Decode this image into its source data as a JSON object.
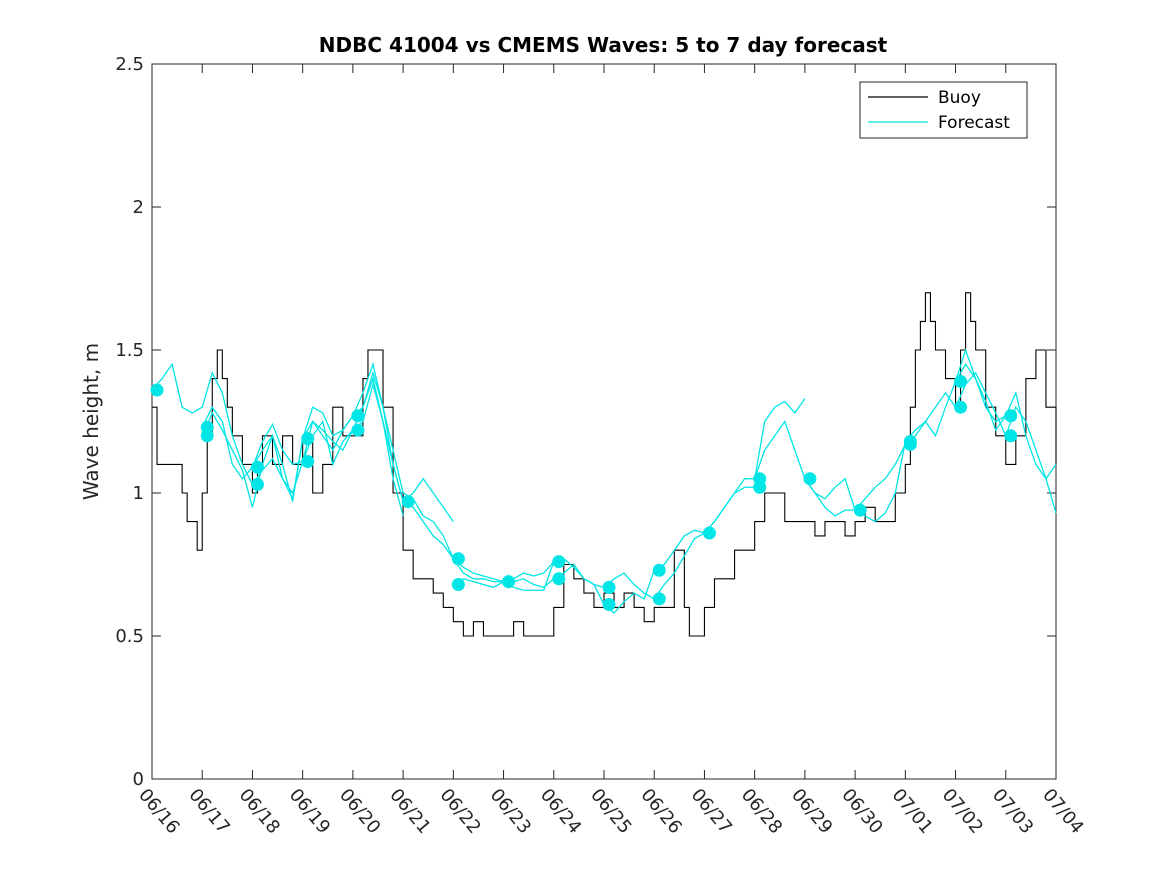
{
  "chart_data": {
    "type": "line",
    "title": "NDBC 41004 vs CMEMS Waves: 5 to 7 day forecast",
    "xlabel": "",
    "ylabel": "Wave height, m",
    "xlim": [
      "06/16",
      "07/04"
    ],
    "ylim": [
      0,
      2.5
    ],
    "y_ticks": [
      0,
      0.5,
      1,
      1.5,
      2,
      2.5
    ],
    "y_tick_labels": [
      "0",
      "0.5",
      "1",
      "1.5",
      "2",
      "2.5"
    ],
    "x_tick_labels": [
      "06/16",
      "06/17",
      "06/18",
      "06/19",
      "06/20",
      "06/21",
      "06/22",
      "06/23",
      "06/24",
      "06/25",
      "06/26",
      "06/27",
      "06/28",
      "06/29",
      "06/30",
      "07/01",
      "07/02",
      "07/03",
      "07/04"
    ],
    "grid": false,
    "legend_position": "top-right",
    "colors": {
      "buoy": "#000000",
      "forecast": "#00e5e5"
    },
    "series": [
      {
        "name": "Buoy",
        "color": "#000000",
        "x_days": [
          0,
          0.1,
          0.3,
          0.5,
          0.6,
          0.7,
          0.8,
          0.9,
          1.0,
          1.1,
          1.2,
          1.3,
          1.4,
          1.5,
          1.6,
          1.8,
          2.0,
          2.1,
          2.2,
          2.4,
          2.6,
          2.8,
          3.0,
          3.2,
          3.4,
          3.6,
          3.8,
          4.0,
          4.2,
          4.3,
          4.4,
          4.6,
          4.8,
          5.0,
          5.2,
          5.4,
          5.6,
          5.8,
          6.0,
          6.2,
          6.4,
          6.6,
          6.8,
          7.0,
          7.2,
          7.4,
          7.6,
          7.8,
          8.0,
          8.2,
          8.4,
          8.6,
          8.8,
          9.0,
          9.2,
          9.4,
          9.6,
          9.8,
          10.0,
          10.2,
          10.4,
          10.6,
          10.7,
          10.8,
          11.0,
          11.2,
          11.4,
          11.6,
          11.8,
          12.0,
          12.2,
          12.4,
          12.6,
          12.8,
          13.0,
          13.2,
          13.4,
          13.6,
          13.8,
          14.0,
          14.2,
          14.4,
          14.6,
          14.8,
          15.0,
          15.1,
          15.2,
          15.3,
          15.4,
          15.5,
          15.6,
          15.8,
          16.0,
          16.1,
          16.2,
          16.3,
          16.4,
          16.6,
          16.8,
          17.0,
          17.2,
          17.4,
          17.6,
          17.8,
          18.0
        ],
        "values": [
          1.3,
          1.1,
          1.1,
          1.1,
          1.0,
          0.9,
          0.9,
          0.8,
          1.0,
          1.2,
          1.4,
          1.5,
          1.4,
          1.3,
          1.2,
          1.1,
          1.0,
          1.1,
          1.2,
          1.1,
          1.2,
          1.1,
          1.2,
          1.0,
          1.1,
          1.3,
          1.2,
          1.2,
          1.4,
          1.5,
          1.5,
          1.3,
          1.0,
          0.8,
          0.7,
          0.7,
          0.65,
          0.6,
          0.55,
          0.5,
          0.55,
          0.5,
          0.5,
          0.5,
          0.55,
          0.5,
          0.5,
          0.5,
          0.6,
          0.75,
          0.7,
          0.65,
          0.6,
          0.65,
          0.6,
          0.65,
          0.6,
          0.55,
          0.6,
          0.6,
          0.8,
          0.6,
          0.5,
          0.5,
          0.6,
          0.7,
          0.7,
          0.8,
          0.8,
          0.9,
          1.0,
          1.0,
          0.9,
          0.9,
          0.9,
          0.85,
          0.9,
          0.9,
          0.85,
          0.9,
          0.95,
          0.9,
          0.9,
          1.0,
          1.1,
          1.3,
          1.5,
          1.6,
          1.7,
          1.6,
          1.5,
          1.4,
          1.3,
          1.5,
          1.7,
          1.6,
          1.5,
          1.3,
          1.2,
          1.1,
          1.2,
          1.4,
          1.5,
          1.3,
          1.1
        ]
      },
      {
        "name": "Forecast",
        "color": "#00e5e5",
        "runs": [
          {
            "x_days": [
              0,
              0.2,
              0.4,
              0.6,
              0.8,
              1.0,
              1.2,
              1.4,
              1.6,
              1.8,
              2.0
            ],
            "values": [
              1.36,
              1.4,
              1.45,
              1.3,
              1.28,
              1.3,
              1.42,
              1.35,
              1.2,
              1.1,
              1.03
            ]
          },
          {
            "x_days": [
              1.0,
              1.2,
              1.4,
              1.6,
              1.8,
              2.0,
              2.2,
              2.4,
              2.6,
              2.8,
              3.0
            ],
            "values": [
              1.23,
              1.3,
              1.25,
              1.1,
              1.05,
              1.09,
              1.18,
              1.24,
              1.15,
              1.1,
              1.11
            ]
          },
          {
            "x_days": [
              1.0,
              1.2,
              1.4,
              1.6,
              1.8,
              2.0,
              2.2,
              2.4,
              2.6,
              2.8,
              3.0
            ],
            "values": [
              1.2,
              1.28,
              1.22,
              1.15,
              1.08,
              0.95,
              1.1,
              1.2,
              1.05,
              0.98,
              1.19
            ]
          },
          {
            "x_days": [
              2.0,
              2.2,
              2.4,
              2.6,
              2.8,
              3.0,
              3.2,
              3.4,
              3.6,
              3.8,
              4.0
            ],
            "values": [
              1.09,
              1.15,
              1.2,
              1.1,
              0.97,
              1.19,
              1.3,
              1.28,
              1.2,
              1.22,
              1.27
            ]
          },
          {
            "x_days": [
              2.0,
              2.2,
              2.4,
              2.6,
              2.8,
              3.0,
              3.2,
              3.4,
              3.6,
              3.8,
              4.0
            ],
            "values": [
              1.03,
              1.08,
              1.12,
              1.05,
              1.0,
              1.11,
              1.25,
              1.22,
              1.18,
              1.15,
              1.22
            ]
          },
          {
            "x_days": [
              3.0,
              3.2,
              3.4,
              3.6,
              3.8,
              4.0,
              4.2,
              4.4,
              4.6,
              4.8,
              5.0
            ],
            "values": [
              1.19,
              1.25,
              1.2,
              1.15,
              1.22,
              1.27,
              1.35,
              1.45,
              1.3,
              1.1,
              0.97
            ]
          },
          {
            "x_days": [
              3.0,
              3.2,
              3.4,
              3.6,
              3.8,
              4.0,
              4.2,
              4.4,
              4.6,
              4.8,
              5.0
            ],
            "values": [
              1.11,
              1.2,
              1.25,
              1.1,
              1.18,
              1.22,
              1.3,
              1.4,
              1.25,
              1.05,
              0.92
            ]
          },
          {
            "x_days": [
              4.0,
              4.2,
              4.4,
              4.6,
              4.8,
              5.0,
              5.2,
              5.4,
              5.6,
              5.8,
              6.0
            ],
            "values": [
              1.27,
              1.3,
              1.42,
              1.3,
              1.15,
              1.0,
              0.98,
              0.92,
              0.9,
              0.85,
              0.77
            ]
          },
          {
            "x_days": [
              4.0,
              4.2,
              4.4,
              4.6,
              4.8,
              5.0,
              5.2,
              5.4,
              5.6,
              5.8,
              6.0
            ],
            "values": [
              1.22,
              1.25,
              1.38,
              1.25,
              1.1,
              0.97,
              1.0,
              1.05,
              1.0,
              0.95,
              0.9
            ]
          },
          {
            "x_days": [
              5.0,
              5.2,
              5.4,
              5.6,
              5.8,
              6.0,
              6.2,
              6.4,
              6.6,
              6.8,
              7.0
            ],
            "values": [
              0.97,
              0.95,
              0.9,
              0.85,
              0.82,
              0.77,
              0.72,
              0.7,
              0.7,
              0.69,
              0.69
            ]
          },
          {
            "x_days": [
              6.0,
              6.2,
              6.4,
              6.6,
              6.8,
              7.0,
              7.2,
              7.4,
              7.6,
              7.8,
              8.0
            ],
            "values": [
              0.77,
              0.74,
              0.72,
              0.71,
              0.7,
              0.69,
              0.69,
              0.7,
              0.68,
              0.67,
              0.7
            ]
          },
          {
            "x_days": [
              6.0,
              6.2,
              6.4,
              6.6,
              6.8,
              7.0,
              7.2,
              7.4,
              7.6,
              7.8,
              8.0
            ],
            "values": [
              0.68,
              0.7,
              0.69,
              0.68,
              0.67,
              0.69,
              0.67,
              0.66,
              0.66,
              0.66,
              0.76
            ]
          },
          {
            "x_days": [
              7.0,
              7.2,
              7.4,
              7.6,
              7.8,
              8.0,
              8.2,
              8.4,
              8.6,
              8.8,
              9.0
            ],
            "values": [
              0.69,
              0.7,
              0.72,
              0.71,
              0.72,
              0.76,
              0.77,
              0.74,
              0.7,
              0.68,
              0.61
            ]
          },
          {
            "x_days": [
              8.0,
              8.2,
              8.4,
              8.6,
              8.8,
              9.0,
              9.2,
              9.4,
              9.6,
              9.8,
              10.0
            ],
            "values": [
              0.7,
              0.72,
              0.75,
              0.7,
              0.68,
              0.67,
              0.7,
              0.72,
              0.68,
              0.65,
              0.63
            ]
          },
          {
            "x_days": [
              9.0,
              9.2,
              9.4,
              9.6,
              9.8,
              10.0,
              10.2,
              10.4,
              10.6,
              10.8,
              11.0
            ],
            "values": [
              0.61,
              0.58,
              0.62,
              0.65,
              0.63,
              0.73,
              0.75,
              0.8,
              0.85,
              0.87,
              0.86
            ]
          },
          {
            "x_days": [
              10.0,
              10.2,
              10.4,
              10.6,
              10.8,
              11.0,
              11.2,
              11.4,
              11.6,
              11.8,
              12.0
            ],
            "values": [
              0.63,
              0.68,
              0.72,
              0.78,
              0.84,
              0.86,
              0.9,
              0.95,
              1.0,
              1.02,
              1.02
            ]
          },
          {
            "x_days": [
              11.0,
              11.2,
              11.4,
              11.6,
              11.8,
              12.0,
              12.2,
              12.4,
              12.6,
              12.8,
              13.0
            ],
            "values": [
              0.86,
              0.9,
              0.95,
              1.0,
              1.05,
              1.05,
              1.25,
              1.3,
              1.32,
              1.28,
              1.33
            ]
          },
          {
            "x_days": [
              12.0,
              12.2,
              12.4,
              12.6,
              12.8,
              13.0,
              13.2,
              13.4,
              13.6,
              13.8,
              14.0
            ],
            "values": [
              1.05,
              1.15,
              1.2,
              1.25,
              1.15,
              1.05,
              1.0,
              0.95,
              0.92,
              0.94,
              0.94
            ]
          },
          {
            "x_days": [
              13.0,
              13.2,
              13.4,
              13.6,
              13.8,
              14.0,
              14.2,
              14.4,
              14.6,
              14.8,
              15.0
            ],
            "values": [
              1.05,
              1.0,
              0.98,
              1.02,
              1.05,
              0.94,
              0.92,
              0.9,
              0.93,
              1.0,
              1.18
            ]
          },
          {
            "x_days": [
              14.0,
              14.2,
              14.4,
              14.6,
              14.8,
              15.0,
              15.2,
              15.4,
              15.6,
              15.8,
              16.0
            ],
            "values": [
              0.94,
              0.98,
              1.02,
              1.05,
              1.1,
              1.17,
              1.2,
              1.25,
              1.3,
              1.35,
              1.3
            ]
          },
          {
            "x_days": [
              15.0,
              15.2,
              15.4,
              15.6,
              15.8,
              16.0,
              16.2,
              16.4,
              16.6,
              16.8,
              17.0
            ],
            "values": [
              1.18,
              1.22,
              1.25,
              1.2,
              1.3,
              1.39,
              1.5,
              1.4,
              1.3,
              1.25,
              1.27
            ]
          },
          {
            "x_days": [
              16.0,
              16.2,
              16.4,
              16.6,
              16.8,
              17.0,
              17.2,
              17.4,
              17.6,
              17.8,
              18.0
            ],
            "values": [
              1.3,
              1.38,
              1.42,
              1.35,
              1.28,
              1.2,
              1.3,
              1.25,
              1.15,
              1.05,
              0.93
            ]
          },
          {
            "x_days": [
              16.0,
              16.2,
              16.4,
              16.6,
              16.8,
              17.0,
              17.2,
              17.4,
              17.6,
              17.8,
              18.0
            ],
            "values": [
              1.39,
              1.45,
              1.4,
              1.32,
              1.22,
              1.27,
              1.35,
              1.2,
              1.1,
              1.05,
              1.1
            ]
          }
        ]
      }
    ],
    "forecast_start_markers": {
      "x_days": [
        0.1,
        1.1,
        1.1,
        2.1,
        2.1,
        3.1,
        3.1,
        4.1,
        4.1,
        5.1,
        6.1,
        6.1,
        7.1,
        8.1,
        8.1,
        9.1,
        9.1,
        10.1,
        10.1,
        11.1,
        12.1,
        12.1,
        13.1,
        14.1,
        15.1,
        15.1,
        16.1,
        16.1,
        17.1,
        17.1
      ],
      "values": [
        1.36,
        1.23,
        1.2,
        1.09,
        1.03,
        1.19,
        1.11,
        1.27,
        1.22,
        0.97,
        0.77,
        0.68,
        0.69,
        0.76,
        0.7,
        0.67,
        0.61,
        0.73,
        0.63,
        0.86,
        1.05,
        1.02,
        1.05,
        0.94,
        1.18,
        1.17,
        1.39,
        1.3,
        1.27,
        1.2
      ]
    },
    "legend": [
      {
        "label": "Buoy",
        "color": "#000000"
      },
      {
        "label": "Forecast",
        "color": "#00e5e5"
      }
    ]
  }
}
